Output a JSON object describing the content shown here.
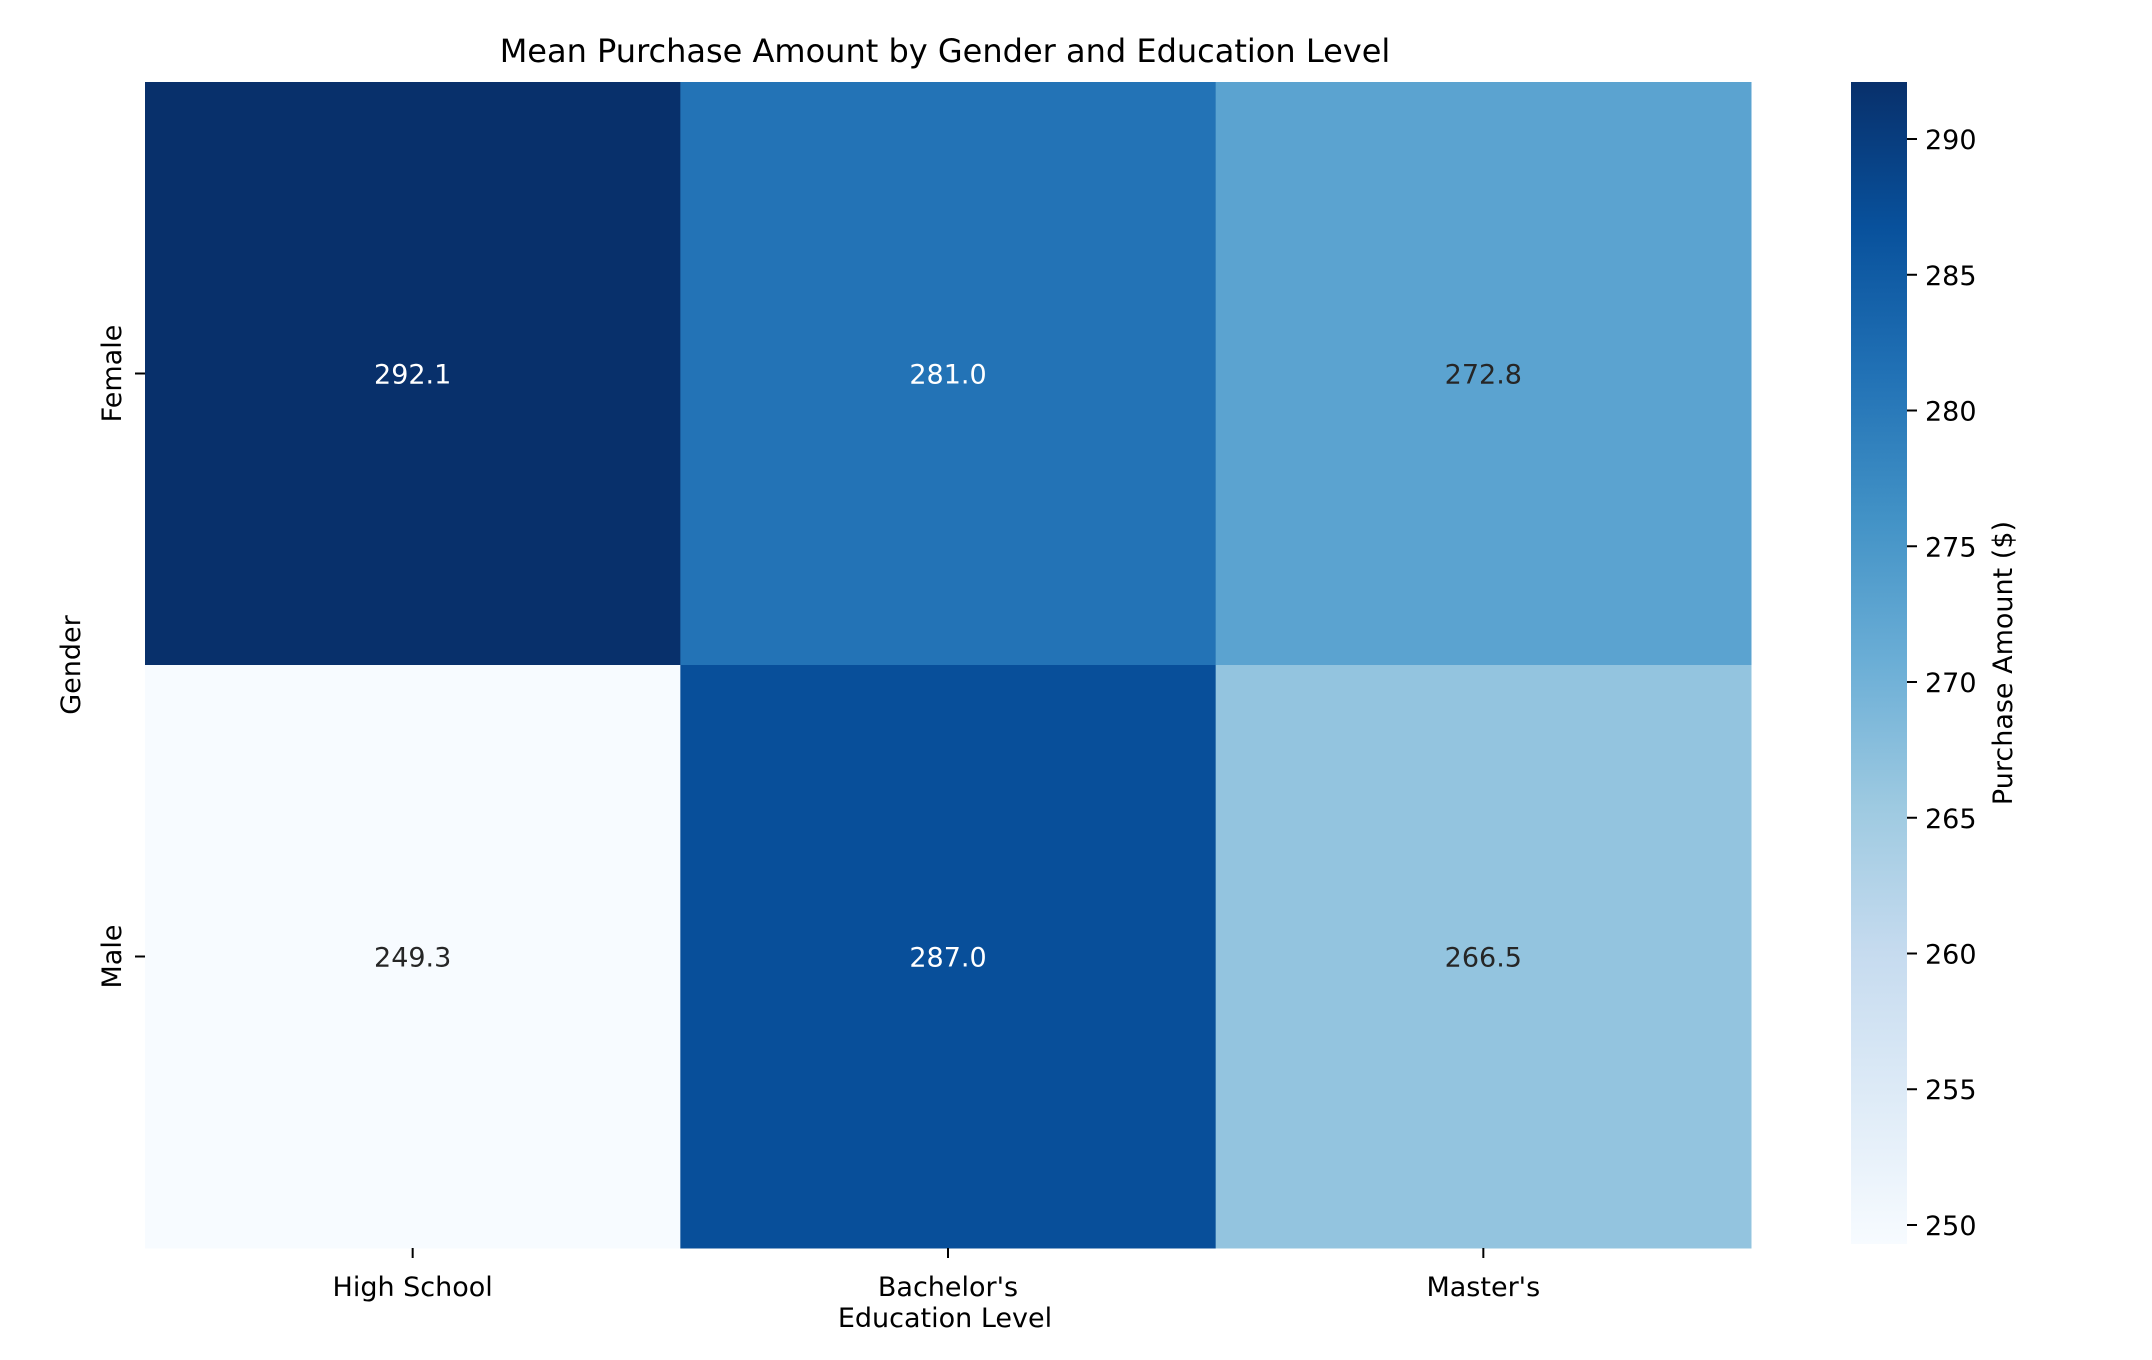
{
  "chart_data": {
    "type": "heatmap",
    "title": "Mean Purchase Amount by Gender and Education Level",
    "xlabel": "Education Level",
    "ylabel": "Gender",
    "x_categories": [
      "High School",
      "Bachelor's",
      "Master's"
    ],
    "y_categories": [
      "Female",
      "Male"
    ],
    "values": [
      [
        292.1,
        281.0,
        272.8
      ],
      [
        249.3,
        287.0,
        266.5
      ]
    ],
    "value_labels": [
      [
        "292.1",
        "281.0",
        "272.8"
      ],
      [
        "249.3",
        "287.0",
        "266.5"
      ]
    ],
    "colormap": "Blues",
    "colorbar": {
      "label": "Purchase Amount ($)",
      "range": [
        249.3,
        292.1
      ],
      "ticks": [
        250,
        255,
        260,
        265,
        270,
        275,
        280,
        285,
        290
      ],
      "tick_labels": [
        "250",
        "255",
        "260",
        "265",
        "270",
        "275",
        "280",
        "285",
        "290"
      ]
    },
    "annotation_colors": {
      "dark": "#262626",
      "light": "#ffffff"
    }
  }
}
